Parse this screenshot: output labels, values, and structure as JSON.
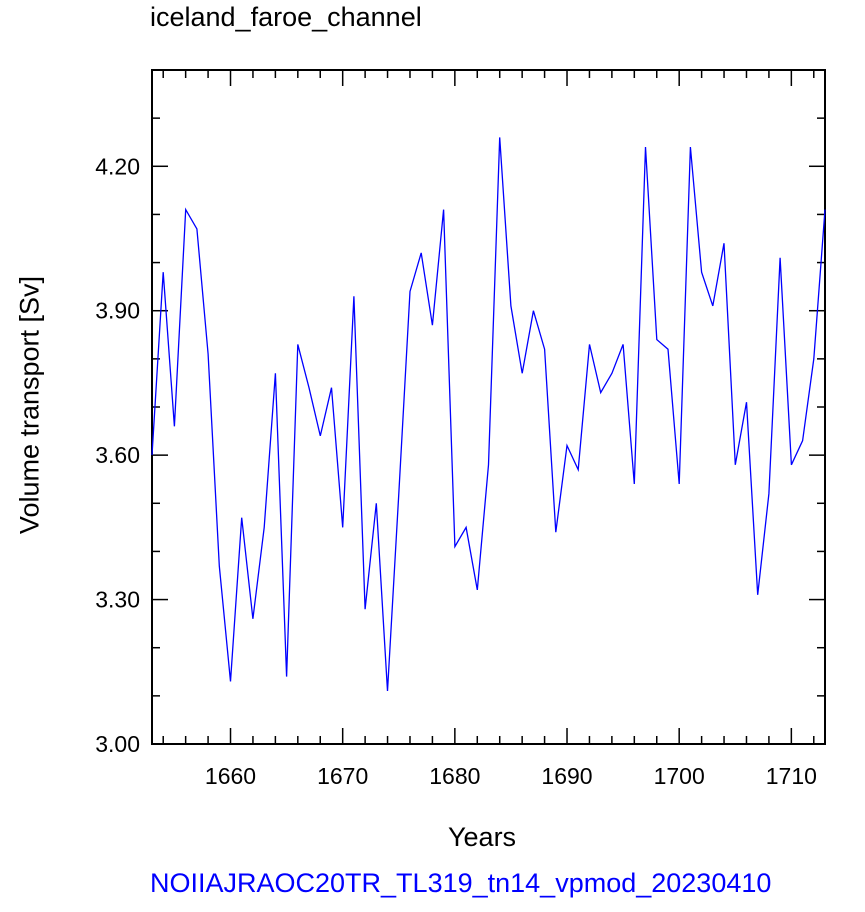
{
  "chart_data": {
    "type": "line",
    "title": "iceland_faroe_channel",
    "xlabel": "Years",
    "ylabel": "Volume transport [Sv]",
    "caption": "NOIIAJRAOC20TR_TL319_tn14_vpmod_20230410",
    "xlim": [
      1653,
      1713
    ],
    "ylim": [
      3.0,
      4.4
    ],
    "xticks": [
      1660,
      1670,
      1680,
      1690,
      1700,
      1710
    ],
    "xtick_labels": [
      "1660",
      "1670",
      "1680",
      "1690",
      "1700",
      "1710"
    ],
    "yticks": [
      3.0,
      3.3,
      3.6,
      3.9,
      4.2
    ],
    "ytick_labels": [
      "3.00",
      "3.30",
      "3.60",
      "3.90",
      "4.20"
    ],
    "grid": false,
    "line_color": "#0000ff",
    "series": [
      {
        "x": [
          1653,
          1654,
          1655,
          1656,
          1657,
          1658,
          1659,
          1660,
          1661,
          1662,
          1663,
          1664,
          1665,
          1666,
          1667,
          1668,
          1669,
          1670,
          1671,
          1672,
          1673,
          1674,
          1675,
          1676,
          1677,
          1678,
          1679,
          1680,
          1681,
          1682,
          1683,
          1684,
          1685,
          1686,
          1687,
          1688,
          1689,
          1690,
          1691,
          1692,
          1693,
          1694,
          1695,
          1696,
          1697,
          1698,
          1699,
          1700,
          1701,
          1702,
          1703,
          1704,
          1705,
          1706,
          1707,
          1708,
          1709,
          1710,
          1711,
          1712,
          1713
        ],
        "values": [
          3.6,
          3.98,
          3.66,
          4.11,
          4.07,
          3.81,
          3.37,
          3.13,
          3.47,
          3.26,
          3.45,
          3.77,
          3.14,
          3.83,
          3.74,
          3.64,
          3.74,
          3.45,
          3.93,
          3.28,
          3.5,
          3.11,
          3.52,
          3.94,
          4.02,
          3.87,
          4.11,
          3.41,
          3.45,
          3.32,
          3.58,
          4.26,
          3.91,
          3.77,
          3.9,
          3.82,
          3.44,
          3.62,
          3.57,
          3.83,
          3.73,
          3.77,
          3.83,
          3.54,
          4.24,
          3.84,
          3.82,
          3.54,
          4.24,
          3.98,
          3.91,
          4.04,
          3.58,
          3.71,
          3.31,
          3.52,
          4.01,
          3.58,
          3.63,
          3.8,
          4.11
        ]
      }
    ]
  }
}
